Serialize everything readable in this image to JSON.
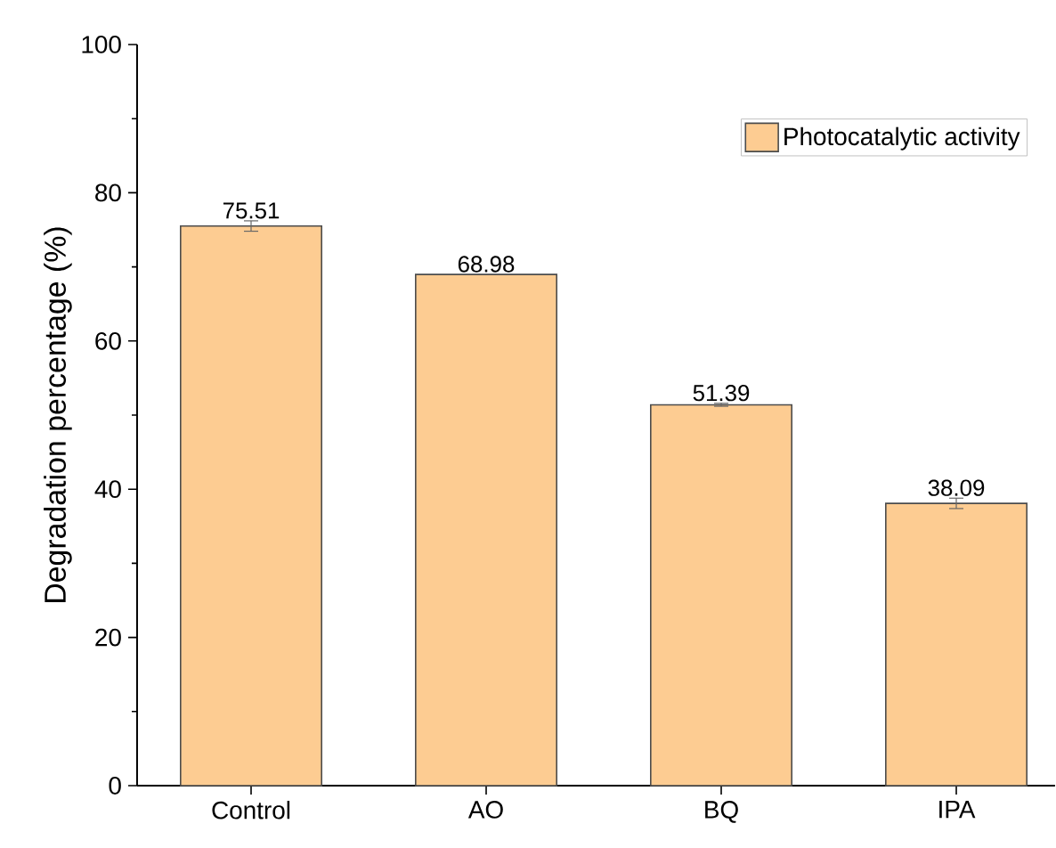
{
  "chart_data": {
    "type": "bar",
    "ylabel": "Degradation percentage (%)",
    "categories": [
      "Control",
      "AO",
      "BQ",
      "IPA"
    ],
    "series": [
      {
        "name": "Photocatalytic activity",
        "color": "#fdcc92",
        "values": [
          75.51,
          68.98,
          51.39,
          38.09
        ],
        "errors": [
          0.7,
          null,
          0.2,
          0.7
        ]
      }
    ],
    "ylim": [
      0,
      100
    ],
    "yticks": [
      0,
      20,
      40,
      60,
      80,
      100
    ],
    "data_labels": true,
    "legend": "top right",
    "grid": false
  }
}
